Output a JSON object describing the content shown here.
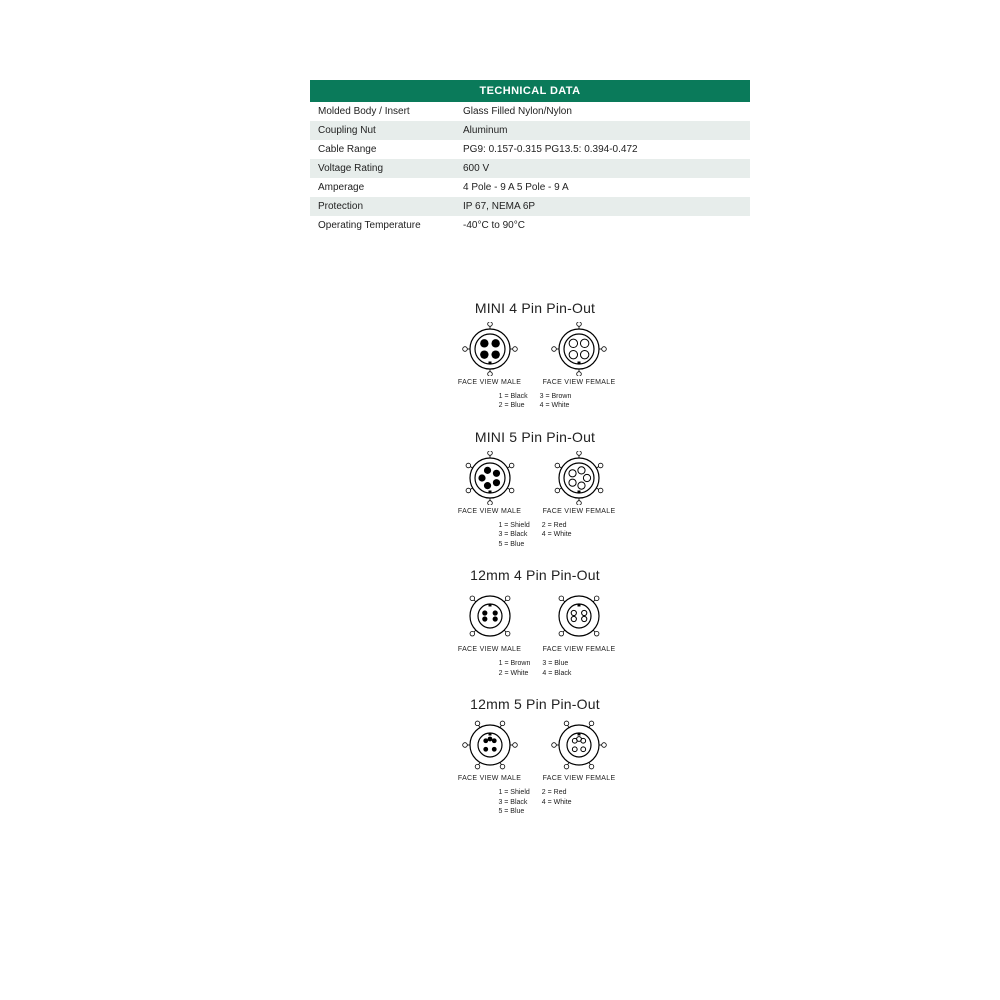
{
  "tech": {
    "header": "TECHNICAL DATA",
    "rows": [
      {
        "label": "Molded Body / Insert",
        "value": "Glass Filled Nylon/Nylon"
      },
      {
        "label": "Coupling Nut",
        "value": "Aluminum"
      },
      {
        "label": "Cable Range",
        "value": "PG9: 0.157-0.315   PG13.5: 0.394-0.472"
      },
      {
        "label": "Voltage Rating",
        "value": "600 V"
      },
      {
        "label": "Amperage",
        "value": "4 Pole - 9 A      5 Pole - 9 A"
      },
      {
        "label": "Protection",
        "value": "IP 67, NEMA 6P"
      },
      {
        "label": "Operating Temperature",
        "value": "-40°C to 90°C"
      }
    ]
  },
  "pinouts": [
    {
      "title": "MINI 4 Pin Pin-Out",
      "style": "mini4",
      "male": {
        "caption": "FACE VIEW MALE",
        "pins": 4
      },
      "female": {
        "caption": "FACE VIEW FEMALE",
        "pins": 4
      },
      "legend": {
        "left": [
          "1 = Black",
          "2 = Blue"
        ],
        "right": [
          "3 = Brown",
          "4 = White"
        ]
      }
    },
    {
      "title": "MINI 5 Pin Pin-Out",
      "style": "mini5",
      "male": {
        "caption": "FACE VIEW MALE",
        "pins": 5
      },
      "female": {
        "caption": "FACE VIEW FEMALE",
        "pins": 5
      },
      "legend": {
        "left": [
          "1 = Shield",
          "3 = Black",
          "5 = Blue"
        ],
        "right": [
          "2 = Red",
          "4 = White"
        ]
      }
    },
    {
      "title": "12mm 4 Pin Pin-Out",
      "style": "m12_4",
      "male": {
        "caption": "FACE VIEW MALE",
        "pins": 4
      },
      "female": {
        "caption": "FACE VIEW FEMALE",
        "pins": 4
      },
      "legend": {
        "left": [
          "1 = Brown",
          "2 = White"
        ],
        "right": [
          "3 = Blue",
          "4 = Black"
        ]
      }
    },
    {
      "title": "12mm 5 Pin Pin-Out",
      "style": "m12_5",
      "male": {
        "caption": "FACE VIEW MALE",
        "pins": 5
      },
      "female": {
        "caption": "FACE VIEW FEMALE",
        "pins": 5
      },
      "legend": {
        "left": [
          "1 = Shield",
          "3 = Black",
          "5 = Blue"
        ],
        "right": [
          "2 = Red",
          "4 = White"
        ]
      }
    }
  ],
  "colors": {
    "header_bg": "#0a7a5a",
    "header_fg": "#ffffff",
    "row_alt_bg": "#e7edeb",
    "stroke": "#000000",
    "bg": "#ffffff"
  }
}
